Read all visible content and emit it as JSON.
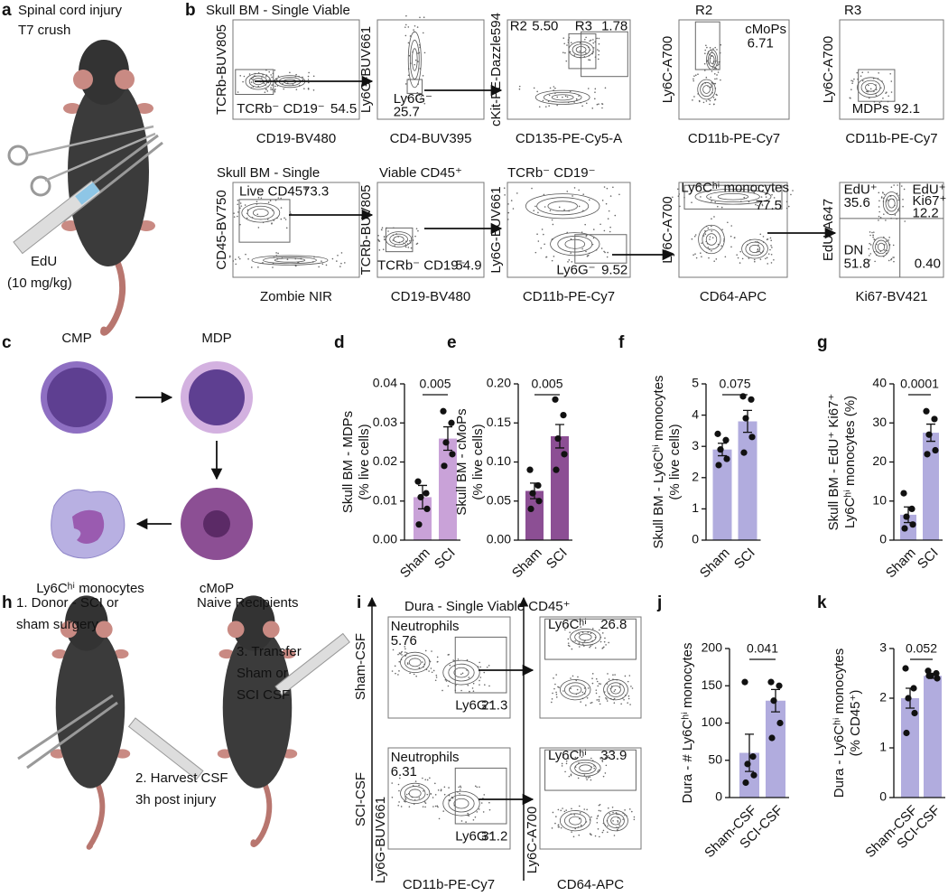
{
  "figure": {
    "panel_labels": [
      "a",
      "b",
      "c",
      "d",
      "e",
      "f",
      "g",
      "h",
      "i",
      "j",
      "k"
    ],
    "a": {
      "title": [
        "Spinal cord injury",
        "T7 crush"
      ],
      "injection": [
        "EdU",
        "(10 mg/kg)"
      ]
    },
    "b": {
      "plots": [
        {
          "title": "Skull BM - Single Viable",
          "ylabel": "TCRb-BUV805",
          "xlabel": "CD19-BV480",
          "gates": [
            "TCRb⁻ CD19⁻",
            "54.5"
          ]
        },
        {
          "ylabel": "Ly6G-BUV661",
          "xlabel": "CD4-BUV395",
          "gates": [
            "Ly6G⁻",
            "25.7"
          ]
        },
        {
          "ylabel": "cKit-PE-Dazzle594",
          "xlabel": "CD135-PE-Cy5-A",
          "gates": [
            "R2",
            "5.50",
            "R3",
            "1.78"
          ]
        },
        {
          "title": "R2",
          "ylabel": "Ly6C-A700",
          "xlabel": "CD11b-PE-Cy7",
          "gates": [
            "cMoPs",
            "6.71"
          ]
        },
        {
          "title": "R3",
          "ylabel": "Ly6C-A700",
          "xlabel": "CD11b-PE-Cy7",
          "gates": [
            "MDPs",
            "92.1"
          ]
        },
        {
          "title": "Skull BM - Single",
          "ylabel": "CD45-BV750",
          "xlabel": "Zombie NIR",
          "gates": [
            "Live CD45⁺",
            "73.3"
          ]
        },
        {
          "title": "Viable CD45⁺",
          "ylabel": "TCRb-BUV805",
          "xlabel": "CD19-BV480",
          "gates": [
            "TCRb⁻ CD19⁻",
            "54.9"
          ]
        },
        {
          "title": "TCRb⁻ CD19⁻",
          "ylabel": "Ly6G-BUV661",
          "xlabel": "CD11b-PE-Cy7",
          "gates": [
            "Ly6G⁻",
            "9.52"
          ]
        },
        {
          "ylabel": "Ly6C-A700",
          "xlabel": "CD64-APC",
          "gates": [
            "Ly6Cʰⁱ monocytes",
            "77.5"
          ]
        },
        {
          "ylabel": "EdU-A647",
          "xlabel": "Ki67-BV421",
          "gates": [
            "EdU⁺",
            "35.6",
            "EdU⁺",
            "Ki67⁺",
            "12.2",
            "DN",
            "51.8",
            "0.40"
          ]
        }
      ]
    },
    "c": {
      "cells": [
        "CMP",
        "MDP",
        "cMoP",
        "Ly6Cʰⁱ monocytes"
      ]
    },
    "h": {
      "steps": [
        [
          "1. Donor - SCI or",
          "sham surgery"
        ],
        [
          "2. Harvest CSF",
          "3h post injury"
        ],
        [
          "3. Transfer",
          "Sham or",
          "SCI CSF"
        ]
      ],
      "recipients": "Naive Recipients"
    },
    "i": {
      "title": "Dura - Single Viable CD45⁺",
      "conditions": [
        "Sham-CSF",
        "SCI-CSF"
      ],
      "xlabels": [
        "CD11b-PE-Cy7",
        "CD64-APC"
      ],
      "ylabels": [
        "Ly6G-BUV661",
        "Ly6C-A700"
      ],
      "plots": [
        {
          "gates": [
            "Neutrophils",
            "5.76",
            "Ly6G⁻",
            "21.3"
          ]
        },
        {
          "gates": [
            "Ly6Cʰⁱ",
            "26.8"
          ]
        },
        {
          "gates": [
            "Neutrophils",
            "6.31",
            "Ly6G⁻",
            "31.2"
          ]
        },
        {
          "gates": [
            "Ly6Cʰⁱ",
            "33.9"
          ]
        }
      ]
    }
  },
  "chart_data": [
    {
      "type": "bar",
      "ylabel": [
        "Skull BM - MDPs",
        "(% live cells)"
      ],
      "categories": [
        "Sham",
        "SCI"
      ],
      "values": [
        0.011,
        0.026
      ],
      "errors": [
        0.003,
        0.003
      ],
      "points": [
        [
          0.015,
          0.012,
          0.011,
          0.008,
          0.004
        ],
        [
          0.033,
          0.03,
          0.025,
          0.022,
          0.019
        ]
      ],
      "p_value": "0.005",
      "color": "#c9a2d8",
      "ylim": [
        0,
        0.04
      ],
      "yticks": [
        {
          "value": 0,
          "label": "0.00"
        },
        {
          "value": 0.01,
          "label": "0.01"
        },
        {
          "value": 0.02,
          "label": "0.02"
        },
        {
          "value": 0.03,
          "label": "0.03"
        },
        {
          "value": 0.04,
          "label": "0.04"
        }
      ]
    },
    {
      "type": "bar",
      "ylabel": [
        "Skull BM - cMoPs",
        "(% live cells)"
      ],
      "categories": [
        "Sham",
        "SCI"
      ],
      "values": [
        0.063,
        0.133
      ],
      "errors": [
        0.01,
        0.015
      ],
      "points": [
        [
          0.09,
          0.07,
          0.06,
          0.05,
          0.04
        ],
        [
          0.18,
          0.16,
          0.13,
          0.11,
          0.09
        ]
      ],
      "p_value": "0.005",
      "color": "#8c4f94",
      "ylim": [
        0,
        0.2
      ],
      "yticks": [
        {
          "value": 0,
          "label": "0.00"
        },
        {
          "value": 0.05,
          "label": "0.05"
        },
        {
          "value": 0.1,
          "label": "0.10"
        },
        {
          "value": 0.15,
          "label": "0.15"
        },
        {
          "value": 0.2,
          "label": "0.20"
        }
      ]
    },
    {
      "type": "bar",
      "ylabel": [
        "Skull BM - Ly6Cʰⁱ monocytes",
        "(% live cells)"
      ],
      "categories": [
        "Sham",
        "SCI"
      ],
      "values": [
        2.9,
        3.8
      ],
      "errors": [
        0.2,
        0.35
      ],
      "points": [
        [
          3.4,
          3.2,
          2.9,
          2.6,
          2.4
        ],
        [
          4.6,
          4.5,
          3.9,
          3.3,
          2.8
        ]
      ],
      "p_value": "0.075",
      "color": "#b1acde",
      "ylim": [
        0,
        5
      ],
      "yticks": [
        0,
        1,
        2,
        3,
        4,
        5
      ]
    },
    {
      "type": "bar",
      "ylabel": [
        "Skull BM - EdU⁺ Ki67⁺",
        "Ly6Cʰⁱ monocytes (%)"
      ],
      "categories": [
        "Sham",
        "SCI"
      ],
      "values": [
        6.5,
        27.5
      ],
      "errors": [
        2,
        2.2
      ],
      "points": [
        [
          12,
          8,
          6,
          4,
          3
        ],
        [
          33,
          31,
          27,
          23,
          22
        ]
      ],
      "p_value": "0.0001",
      "color": "#b1acde",
      "ylim": [
        0,
        40
      ],
      "yticks": [
        0,
        10,
        20,
        30,
        40
      ]
    },
    {
      "type": "bar",
      "ylabel": [
        "Dura - # Ly6Cʰⁱ monocytes"
      ],
      "categories": [
        "Sham-CSF",
        "SCI-CSF"
      ],
      "values": [
        60,
        130
      ],
      "errors": [
        25,
        15
      ],
      "points": [
        [
          155,
          55,
          45,
          30,
          20
        ],
        [
          155,
          150,
          130,
          100,
          80
        ]
      ],
      "p_value": "0.041",
      "color": "#b1acde",
      "ylim": [
        0,
        200
      ],
      "yticks": [
        0,
        50,
        100,
        150,
        200
      ]
    },
    {
      "type": "bar",
      "ylabel": [
        "Dura - Ly6Cʰⁱ monocytes",
        "(% CD45⁺)"
      ],
      "categories": [
        "Sham-CSF",
        "SCI-CSF"
      ],
      "values": [
        2.0,
        2.45
      ],
      "errors": [
        0.2,
        0.05
      ],
      "points": [
        [
          2.6,
          2.2,
          2.0,
          1.7,
          1.3
        ],
        [
          2.55,
          2.5,
          2.45,
          2.4,
          2.45
        ]
      ],
      "p_value": "0.052",
      "color": "#b1acde",
      "ylim": [
        0,
        3
      ],
      "yticks": [
        0,
        1,
        2,
        3
      ]
    }
  ]
}
